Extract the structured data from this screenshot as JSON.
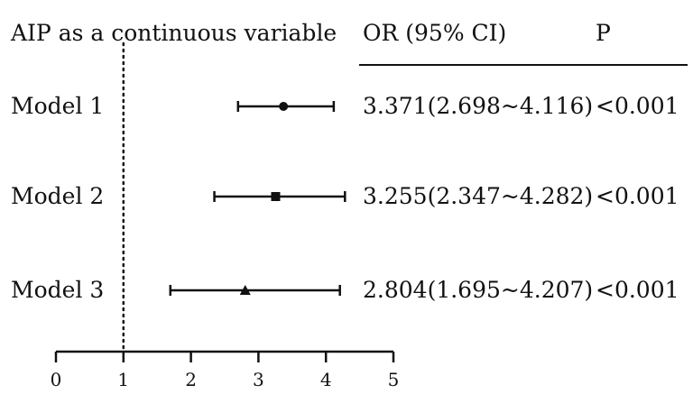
{
  "chart_data": {
    "type": "forest",
    "header": {
      "variable": "AIP as a continuous variable",
      "or_col": "OR (95% CI)",
      "p_col": "P"
    },
    "reference_value": 1,
    "xlim": [
      0,
      5
    ],
    "xticks": [
      0,
      1,
      2,
      3,
      4,
      5
    ],
    "rows": [
      {
        "name": "Model 1",
        "or": 3.371,
        "lower": 2.698,
        "upper": 4.116,
        "marker": "circle",
        "or_text": "3.371(2.698~4.116)",
        "p": "<0.001"
      },
      {
        "name": "Model 2",
        "or": 3.255,
        "lower": 2.347,
        "upper": 4.282,
        "marker": "square",
        "or_text": "3.255(2.347~4.282)",
        "p": "<0.001"
      },
      {
        "name": "Model 3",
        "or": 2.804,
        "lower": 1.695,
        "upper": 4.207,
        "marker": "triangle",
        "or_text": "2.804(1.695~4.207)",
        "p": "<0.001"
      }
    ]
  }
}
